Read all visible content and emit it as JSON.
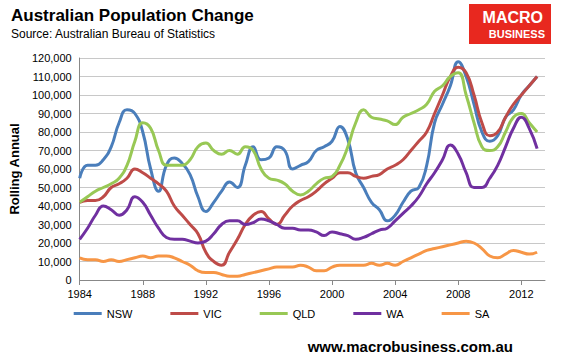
{
  "chart_data": {
    "type": "line",
    "title": "Australian Population Change",
    "subtitle": "Source: Australian Bureau of Statistics",
    "y_label": "Rolling Annual",
    "annotations": [
      "MACRO",
      "BUSINESS",
      "www.macrobusiness.com.au"
    ],
    "x": [
      1984,
      1984.5,
      1985,
      1985.5,
      1986,
      1986.5,
      1987,
      1987.5,
      1988,
      1988.5,
      1989,
      1989.5,
      1990,
      1990.5,
      1991,
      1991.5,
      1992,
      1992.5,
      1993,
      1993.5,
      1994,
      1994.5,
      1995,
      1995.5,
      1996,
      1996.5,
      1997,
      1997.5,
      1998,
      1998.5,
      1999,
      1999.5,
      2000,
      2000.5,
      2001,
      2001.5,
      2002,
      2002.5,
      2003,
      2003.5,
      2004,
      2004.5,
      2005,
      2005.5,
      2006,
      2006.5,
      2007,
      2007.5,
      2008,
      2008.5,
      2009,
      2009.5,
      2010,
      2010.5,
      2011,
      2011.5,
      2012,
      2012.5,
      2013
    ],
    "series": [
      {
        "name": "NSW",
        "color": "#4a7ebb",
        "values": [
          55000,
          62000,
          62000,
          65000,
          72000,
          85000,
          92000,
          90000,
          80000,
          60000,
          48000,
          62000,
          66000,
          63000,
          57000,
          45000,
          37000,
          42000,
          48000,
          53000,
          50000,
          62000,
          72000,
          65000,
          66000,
          72000,
          70000,
          60000,
          62000,
          64000,
          70000,
          72000,
          75000,
          83000,
          76000,
          58000,
          50000,
          42000,
          38000,
          32000,
          35000,
          42000,
          48000,
          50000,
          62000,
          85000,
          95000,
          105000,
          118000,
          110000,
          95000,
          80000,
          75000,
          78000,
          88000,
          92000,
          100000,
          105000,
          110000
        ]
      },
      {
        "name": "VIC",
        "color": "#be4b48",
        "values": [
          42000,
          43000,
          43000,
          45000,
          50000,
          52000,
          55000,
          60000,
          58000,
          55000,
          52000,
          48000,
          40000,
          35000,
          30000,
          25000,
          15000,
          10000,
          8000,
          15000,
          22000,
          30000,
          35000,
          37000,
          33000,
          30000,
          35000,
          40000,
          43000,
          45000,
          48000,
          52000,
          55000,
          58000,
          58000,
          56000,
          55000,
          56000,
          57000,
          60000,
          62000,
          65000,
          70000,
          75000,
          80000,
          90000,
          100000,
          110000,
          115000,
          112000,
          100000,
          85000,
          78000,
          80000,
          88000,
          95000,
          100000,
          105000,
          110000
        ]
      },
      {
        "name": "QLD",
        "color": "#98c855",
        "values": [
          42000,
          45000,
          48000,
          50000,
          52000,
          55000,
          62000,
          75000,
          85000,
          82000,
          70000,
          62000,
          62000,
          62000,
          65000,
          72000,
          74000,
          70000,
          68000,
          70000,
          68000,
          72000,
          70000,
          60000,
          55000,
          54000,
          52000,
          48000,
          46000,
          48000,
          52000,
          55000,
          56000,
          62000,
          72000,
          85000,
          92000,
          88000,
          87000,
          86000,
          84000,
          88000,
          90000,
          92000,
          95000,
          102000,
          105000,
          110000,
          112000,
          100000,
          85000,
          72000,
          70000,
          72000,
          80000,
          88000,
          90000,
          85000,
          80000
        ]
      },
      {
        "name": "WA",
        "color": "#7030a0",
        "values": [
          22000,
          28000,
          35000,
          40000,
          38000,
          35000,
          38000,
          45000,
          42000,
          35000,
          28000,
          23000,
          22000,
          22000,
          21000,
          20000,
          21000,
          25000,
          30000,
          32000,
          32000,
          30000,
          31000,
          33000,
          32000,
          30000,
          28000,
          28000,
          27000,
          27000,
          26000,
          24000,
          26000,
          25000,
          24000,
          22000,
          23000,
          25000,
          27000,
          28000,
          32000,
          36000,
          40000,
          45000,
          52000,
          58000,
          65000,
          73000,
          68000,
          58000,
          50000,
          50000,
          55000,
          62000,
          72000,
          82000,
          88000,
          82000,
          71000
        ]
      },
      {
        "name": "SA",
        "color": "#f79646",
        "values": [
          12000,
          11000,
          11000,
          10000,
          11000,
          10000,
          11000,
          12000,
          13000,
          12000,
          13000,
          13000,
          12000,
          10000,
          8000,
          5000,
          4000,
          4000,
          3000,
          2000,
          2000,
          3000,
          4000,
          5000,
          6000,
          7000,
          7000,
          7000,
          8000,
          7000,
          5000,
          5000,
          7000,
          8000,
          8000,
          8000,
          8000,
          9000,
          8000,
          9000,
          8000,
          10000,
          12000,
          14000,
          16000,
          17000,
          18000,
          19000,
          20000,
          21000,
          20000,
          17000,
          13000,
          12000,
          14000,
          16000,
          15000,
          14000,
          15000
        ]
      }
    ],
    "xlim": [
      1984,
      2013.5
    ],
    "xticks": [
      1984,
      1988,
      1992,
      1996,
      2000,
      2004,
      2008,
      2012
    ],
    "ylim": [
      0,
      120000
    ],
    "yticks": [
      0,
      {
        "value": 10000,
        "label": "10,000"
      },
      {
        "value": 20000,
        "label": "20,000"
      },
      {
        "value": 30000,
        "label": "30,000"
      },
      {
        "value": 40000,
        "label": "40,000"
      },
      {
        "value": 50000,
        "label": "50,000"
      },
      {
        "value": 60000,
        "label": "60,000"
      },
      {
        "value": 70000,
        "label": "70,000"
      },
      {
        "value": 80000,
        "label": "80,000"
      },
      {
        "value": 90000,
        "label": "90,000"
      },
      {
        "value": 100000,
        "label": "100,000"
      },
      {
        "value": 110000,
        "label": "110,000"
      },
      {
        "value": 120000,
        "label": "120,000"
      }
    ],
    "grid": true,
    "legend": "bottom"
  }
}
